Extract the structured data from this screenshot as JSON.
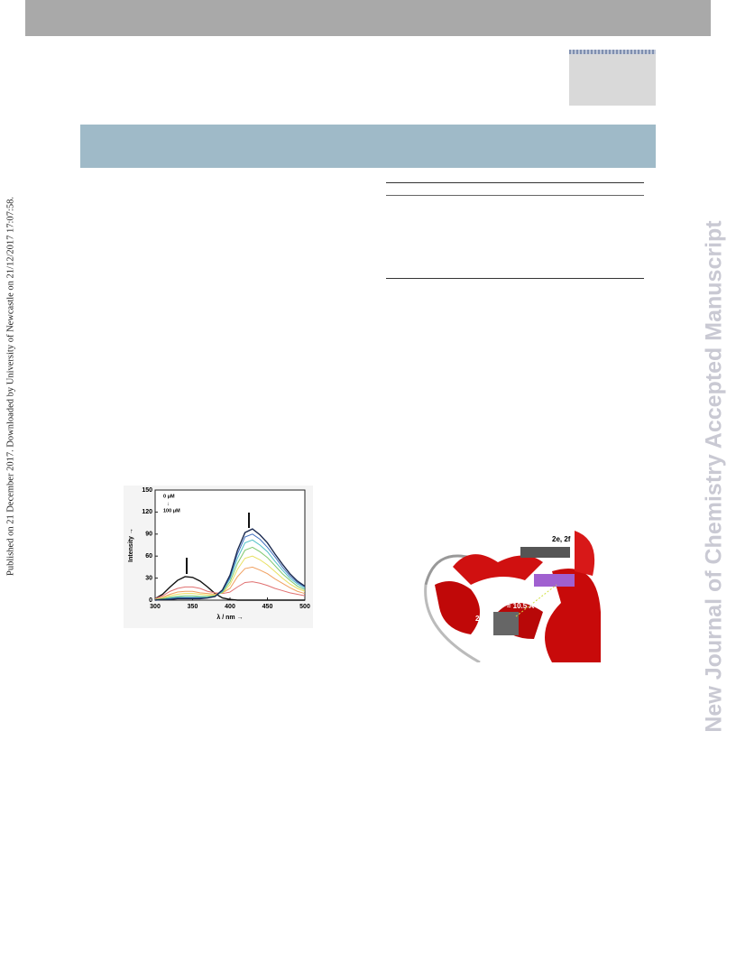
{
  "side_note": "Published on 21 December 2017. Downloaded by University of Newcastle on 21/12/2017 17:07:58.",
  "watermark": "New Journal of Chemistry Accepted Manuscript",
  "chart_data": {
    "type": "line",
    "xlabel": "λ / nm →",
    "ylabel": "Intensity →",
    "annotations": [
      "0 μM",
      "↓",
      "100 μM"
    ],
    "x": [
      300,
      310,
      320,
      330,
      340,
      350,
      360,
      370,
      380,
      390,
      400,
      410,
      420,
      430,
      440,
      450,
      460,
      470,
      480,
      490,
      500
    ],
    "xlim": [
      300,
      500
    ],
    "ylim": [
      0,
      150
    ],
    "xticks": [
      300,
      350,
      400,
      450,
      500
    ],
    "yticks": [
      0,
      30,
      60,
      90,
      120,
      150
    ],
    "series": [
      {
        "color": "#111111",
        "values": [
          2,
          8,
          18,
          27,
          32,
          31,
          26,
          18,
          9,
          3,
          1,
          0,
          0,
          0,
          0,
          0,
          0,
          0,
          0,
          0,
          0
        ]
      },
      {
        "color": "#e07070",
        "values": [
          2,
          6,
          12,
          16,
          18,
          18,
          16,
          12,
          10,
          9,
          11,
          18,
          24,
          25,
          23,
          20,
          16,
          13,
          10,
          8,
          6
        ]
      },
      {
        "color": "#f0a060",
        "values": [
          1,
          4,
          8,
          11,
          12,
          12,
          10,
          9,
          8,
          10,
          16,
          32,
          43,
          45,
          41,
          36,
          29,
          23,
          17,
          12,
          9
        ]
      },
      {
        "color": "#e8e060",
        "values": [
          1,
          3,
          6,
          8,
          9,
          9,
          8,
          7,
          7,
          10,
          21,
          42,
          57,
          60,
          55,
          48,
          39,
          30,
          22,
          16,
          12
        ]
      },
      {
        "color": "#80c870",
        "values": [
          1,
          2,
          4,
          5,
          6,
          6,
          5,
          5,
          6,
          11,
          25,
          50,
          68,
          72,
          66,
          58,
          47,
          36,
          27,
          19,
          14
        ]
      },
      {
        "color": "#50c0c8",
        "values": [
          0,
          1,
          3,
          4,
          4,
          4,
          4,
          4,
          5,
          12,
          29,
          57,
          78,
          82,
          75,
          66,
          53,
          41,
          30,
          22,
          16
        ]
      },
      {
        "color": "#4070c0",
        "values": [
          0,
          1,
          2,
          3,
          3,
          3,
          3,
          3,
          5,
          13,
          31,
          63,
          86,
          90,
          83,
          72,
          59,
          45,
          33,
          24,
          18
        ]
      },
      {
        "color": "#1a2a50",
        "values": [
          0,
          1,
          1,
          2,
          2,
          2,
          2,
          3,
          5,
          14,
          34,
          68,
          92,
          97,
          89,
          78,
          63,
          49,
          36,
          26,
          19
        ]
      }
    ]
  },
  "figure": {
    "labels": [
      "2e, 2f",
      "≈ 3.5 Å",
      "≈ 10.5 Å",
      "2a-d"
    ]
  }
}
